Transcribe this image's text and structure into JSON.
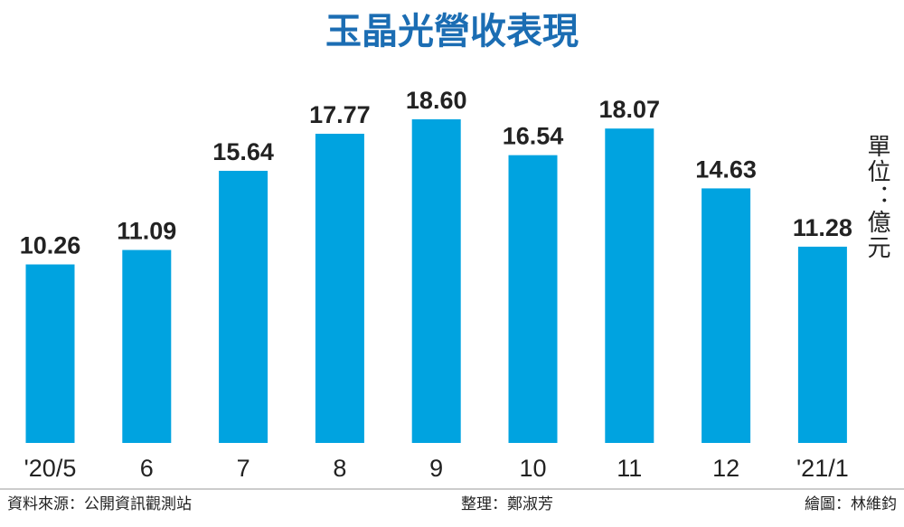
{
  "chart_data": {
    "type": "bar",
    "title": "玉晶光營收表現",
    "unit": "單位：億元",
    "categories": [
      "'20/5",
      "6",
      "7",
      "8",
      "9",
      "10",
      "11",
      "12",
      "'21/1"
    ],
    "values": [
      10.26,
      11.09,
      15.64,
      17.77,
      18.6,
      16.54,
      18.07,
      14.63,
      11.28
    ],
    "value_labels": [
      "10.26",
      "11.09",
      "15.64",
      "17.77",
      "18.60",
      "16.54",
      "18.07",
      "14.63",
      "11.28"
    ],
    "color": "#00a3e0",
    "source": "資料來源：公開資訊觀測站",
    "editor": "整理：鄭淑芳",
    "illustrator": "繪圖：林維鈞"
  }
}
